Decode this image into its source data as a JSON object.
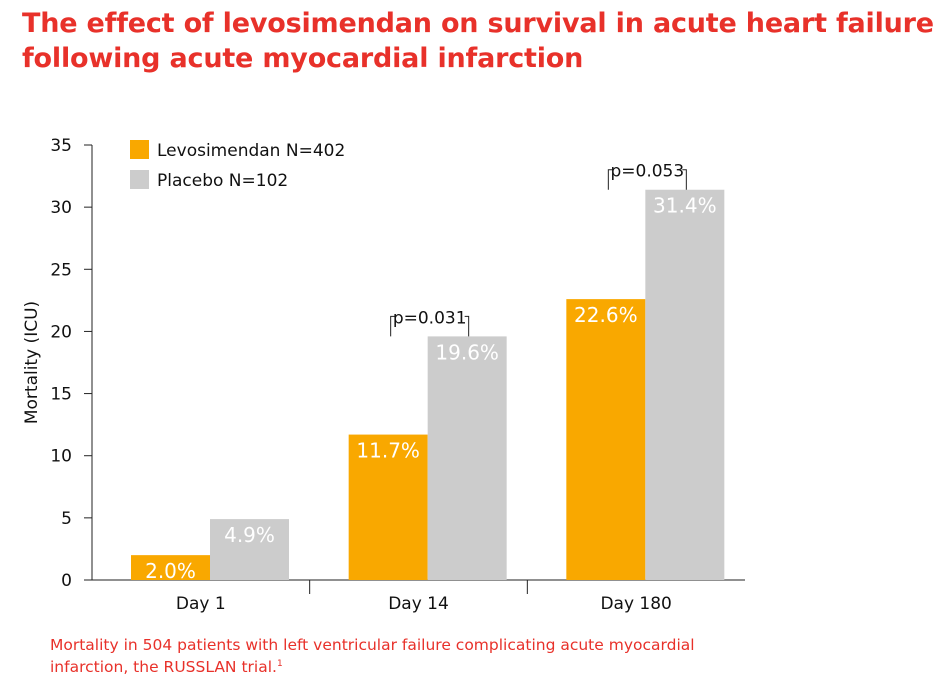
{
  "title": {
    "line1": "The effect of levosimendan on survival in acute heart failure",
    "line2": "following acute myocardial infarction"
  },
  "chart_data": {
    "type": "bar",
    "title": "The effect of levosimendan on survival in acute heart failure following acute myocardial infarction",
    "xlabel": "",
    "ylabel": "Mortality (ICU)",
    "ylim": [
      0,
      35
    ],
    "yticks": [
      0,
      5,
      10,
      15,
      20,
      25,
      30,
      35
    ],
    "categories": [
      "Day 1",
      "Day 14",
      "Day 180"
    ],
    "series": [
      {
        "name": "Levosimendan N=402",
        "color": "#f9a800",
        "values": [
          2.0,
          11.7,
          22.6
        ],
        "labels": [
          "2.0%",
          "11.7%",
          "22.6%"
        ]
      },
      {
        "name": "Placebo N=102",
        "color": "#cccccc",
        "values": [
          4.9,
          19.6,
          31.4
        ],
        "labels": [
          "4.9%",
          "19.6%",
          "31.4%"
        ]
      }
    ],
    "annotations": [
      {
        "category": "Day 14",
        "text": "p=0.031"
      },
      {
        "category": "Day 180",
        "text": "p=0.053"
      }
    ],
    "legend": "top-left",
    "grid": false
  },
  "caption": {
    "text": "Mortality in 504 patients with left ventricular failure complicating acute myocardial infarction, the RUSSLAN trial.",
    "ref": "1"
  }
}
